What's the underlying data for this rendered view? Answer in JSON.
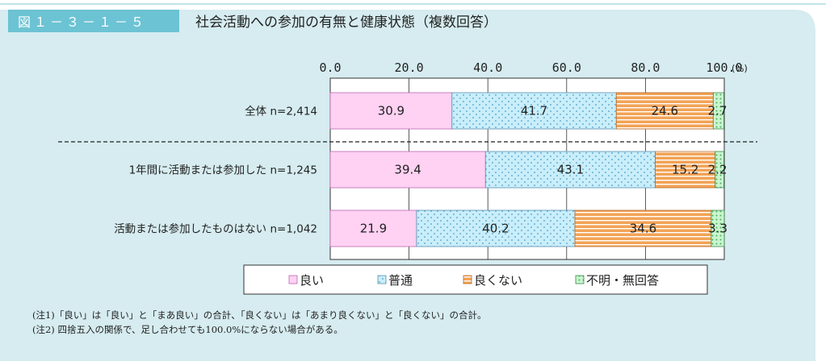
{
  "figure_label": "図１－３－１－５",
  "title": "社会活動への参加の有無と健康状態（複数回答）",
  "colors": {
    "panel_bg": "#d6ecf0",
    "header_bar": "#6cc3d3",
    "good": "#ffd1f3",
    "good_stroke": "#b868b0",
    "normal": "#c9eefa",
    "normal_dot": "#4a9ec9",
    "bad": "#f2a356",
    "bad_stripe": "#ffffff",
    "unknown": "#c9f5cf",
    "unknown_dot": "#48b05a"
  },
  "chart_data": {
    "type": "stacked-bar-horizontal",
    "unit_label": "(%)",
    "xlim": [
      0,
      100
    ],
    "ticks": [
      "0.0",
      "20.0",
      "40.0",
      "60.0",
      "80.0",
      "100.0"
    ],
    "tick_values": [
      0,
      20,
      40,
      60,
      80,
      100
    ],
    "categories": [
      "全体 n=2,414",
      "1年間に活動または参加した n=1,245",
      "活動または参加したものはない n=1,042"
    ],
    "series": [
      {
        "name": "良い",
        "key": "good",
        "values": [
          30.9,
          39.4,
          21.9
        ]
      },
      {
        "name": "普通",
        "key": "normal",
        "values": [
          41.7,
          43.1,
          40.2
        ]
      },
      {
        "name": "良くない",
        "key": "bad",
        "values": [
          24.6,
          15.2,
          34.6
        ]
      },
      {
        "name": "不明・無回答",
        "key": "unknown",
        "values": [
          2.7,
          2.2,
          3.3
        ]
      }
    ],
    "legend_position": "bottom"
  },
  "notes": [
    "(注1)「良い」は「良い」と「まあ良い」の合計、「良くない」は「あまり良くない」と「良くない」の合計。",
    "(注2) 四捨五入の関係で、足し合わせても100.0%にならない場合がある。"
  ]
}
